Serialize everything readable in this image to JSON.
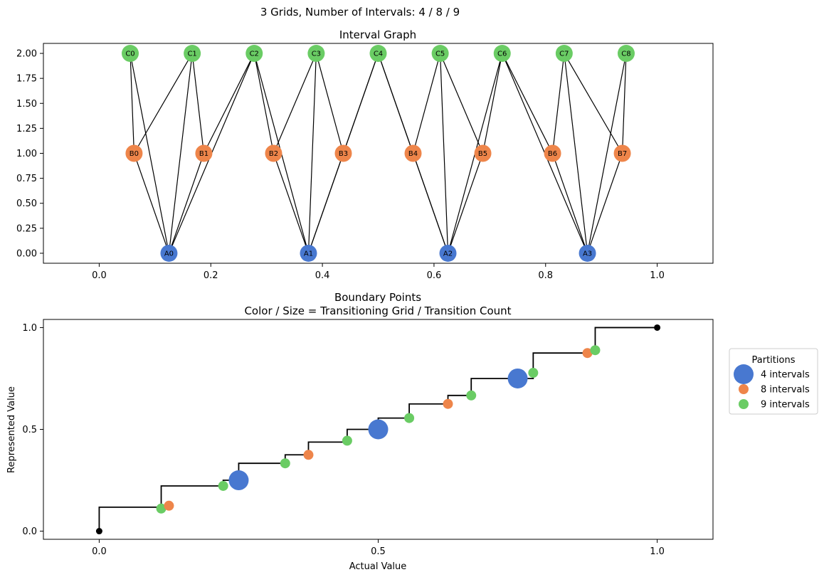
{
  "figure": {
    "suptitle": "3 Grids, Number of Intervals: 4 / 8 / 9"
  },
  "colors": {
    "grid4": "#4878d0",
    "grid8": "#ee854a",
    "grid9": "#6acc64",
    "line": "#000000"
  },
  "chart_data": [
    {
      "type": "scatter",
      "title": "Interval Graph",
      "xlabel": "",
      "ylabel": "",
      "xlim": [
        -0.1,
        1.1
      ],
      "ylim": [
        -0.1,
        2.1
      ],
      "xticks": [
        "0.0",
        "0.2",
        "0.4",
        "0.6",
        "0.8",
        "1.0"
      ],
      "yticks": [
        "0.00",
        "0.25",
        "0.50",
        "0.75",
        "1.00",
        "1.25",
        "1.50",
        "1.75",
        "2.00"
      ],
      "nodes": [
        {
          "label": "A0",
          "x": 0.125,
          "y": 0,
          "group": "grid4"
        },
        {
          "label": "A1",
          "x": 0.375,
          "y": 0,
          "group": "grid4"
        },
        {
          "label": "A2",
          "x": 0.625,
          "y": 0,
          "group": "grid4"
        },
        {
          "label": "A3",
          "x": 0.875,
          "y": 0,
          "group": "grid4"
        },
        {
          "label": "B0",
          "x": 0.0625,
          "y": 1,
          "group": "grid8"
        },
        {
          "label": "B1",
          "x": 0.1875,
          "y": 1,
          "group": "grid8"
        },
        {
          "label": "B2",
          "x": 0.3125,
          "y": 1,
          "group": "grid8"
        },
        {
          "label": "B3",
          "x": 0.4375,
          "y": 1,
          "group": "grid8"
        },
        {
          "label": "B4",
          "x": 0.5625,
          "y": 1,
          "group": "grid8"
        },
        {
          "label": "B5",
          "x": 0.6875,
          "y": 1,
          "group": "grid8"
        },
        {
          "label": "B6",
          "x": 0.8125,
          "y": 1,
          "group": "grid8"
        },
        {
          "label": "B7",
          "x": 0.9375,
          "y": 1,
          "group": "grid8"
        },
        {
          "label": "C0",
          "x": 0.0556,
          "y": 2,
          "group": "grid9"
        },
        {
          "label": "C1",
          "x": 0.1667,
          "y": 2,
          "group": "grid9"
        },
        {
          "label": "C2",
          "x": 0.2778,
          "y": 2,
          "group": "grid9"
        },
        {
          "label": "C3",
          "x": 0.3889,
          "y": 2,
          "group": "grid9"
        },
        {
          "label": "C4",
          "x": 0.5,
          "y": 2,
          "group": "grid9"
        },
        {
          "label": "C5",
          "x": 0.6111,
          "y": 2,
          "group": "grid9"
        },
        {
          "label": "C6",
          "x": 0.7222,
          "y": 2,
          "group": "grid9"
        },
        {
          "label": "C7",
          "x": 0.8333,
          "y": 2,
          "group": "grid9"
        },
        {
          "label": "C8",
          "x": 0.9444,
          "y": 2,
          "group": "grid9"
        }
      ],
      "edges": [
        [
          "A0",
          "B0"
        ],
        [
          "A0",
          "B1"
        ],
        [
          "A0",
          "C0"
        ],
        [
          "A0",
          "C1"
        ],
        [
          "A0",
          "C2"
        ],
        [
          "A1",
          "B2"
        ],
        [
          "A1",
          "B3"
        ],
        [
          "A1",
          "C2"
        ],
        [
          "A1",
          "C3"
        ],
        [
          "A1",
          "C4"
        ],
        [
          "A2",
          "B4"
        ],
        [
          "A2",
          "B5"
        ],
        [
          "A2",
          "C4"
        ],
        [
          "A2",
          "C5"
        ],
        [
          "A2",
          "C6"
        ],
        [
          "A3",
          "B6"
        ],
        [
          "A3",
          "B7"
        ],
        [
          "A3",
          "C6"
        ],
        [
          "A3",
          "C7"
        ],
        [
          "A3",
          "C8"
        ],
        [
          "B0",
          "C0"
        ],
        [
          "B0",
          "C1"
        ],
        [
          "B1",
          "C1"
        ],
        [
          "B1",
          "C2"
        ],
        [
          "B2",
          "C2"
        ],
        [
          "B2",
          "C3"
        ],
        [
          "B3",
          "C3"
        ],
        [
          "B3",
          "C4"
        ],
        [
          "B4",
          "C4"
        ],
        [
          "B4",
          "C5"
        ],
        [
          "B5",
          "C5"
        ],
        [
          "B5",
          "C6"
        ],
        [
          "B6",
          "C6"
        ],
        [
          "B6",
          "C7"
        ],
        [
          "B7",
          "C7"
        ],
        [
          "B7",
          "C8"
        ]
      ]
    },
    {
      "type": "line",
      "title": "Boundary Points",
      "subtitle": "Color / Size = Transitioning Grid / Transition Count",
      "xlabel": "Actual Value",
      "ylabel": "Represented Value",
      "xlim": [
        -0.1,
        1.1
      ],
      "ylim": [
        -0.04,
        1.04
      ],
      "xticks": [
        "0.0",
        "0.5",
        "1.0"
      ],
      "yticks": [
        "0.0",
        "0.5",
        "1.0"
      ],
      "step_x": [
        0,
        0.1111,
        0.125,
        0.2222,
        0.25,
        0.3333,
        0.375,
        0.4444,
        0.5,
        0.5556,
        0.625,
        0.6667,
        0.75,
        0.7778,
        0.875,
        0.8889,
        1.0
      ],
      "step_y": [
        0.1176,
        0.2222,
        0.2222,
        0.25,
        0.3333,
        0.375,
        0.4375,
        0.5,
        0.5556,
        0.625,
        0.6667,
        0.75,
        0.75,
        0.875,
        0.875,
        1.0,
        1.0
      ],
      "endpoints": [
        {
          "x": 0,
          "y": 0
        },
        {
          "x": 1.0,
          "y": 1.0
        }
      ],
      "points": [
        {
          "x": 0.1111,
          "y": 0.1111,
          "group": "grid9",
          "count": 1
        },
        {
          "x": 0.125,
          "y": 0.125,
          "group": "grid8",
          "count": 1
        },
        {
          "x": 0.2222,
          "y": 0.2222,
          "group": "grid9",
          "count": 1
        },
        {
          "x": 0.25,
          "y": 0.25,
          "group": "grid4",
          "count": 3
        },
        {
          "x": 0.3333,
          "y": 0.3333,
          "group": "grid9",
          "count": 1
        },
        {
          "x": 0.375,
          "y": 0.375,
          "group": "grid8",
          "count": 1
        },
        {
          "x": 0.4444,
          "y": 0.4444,
          "group": "grid9",
          "count": 1
        },
        {
          "x": 0.5,
          "y": 0.5,
          "group": "grid4",
          "count": 3
        },
        {
          "x": 0.5556,
          "y": 0.5556,
          "group": "grid9",
          "count": 1
        },
        {
          "x": 0.625,
          "y": 0.625,
          "group": "grid8",
          "count": 1
        },
        {
          "x": 0.6667,
          "y": 0.6667,
          "group": "grid9",
          "count": 1
        },
        {
          "x": 0.75,
          "y": 0.75,
          "group": "grid4",
          "count": 3
        },
        {
          "x": 0.7778,
          "y": 0.7778,
          "group": "grid9",
          "count": 1
        },
        {
          "x": 0.875,
          "y": 0.875,
          "group": "grid8",
          "count": 1
        },
        {
          "x": 0.8889,
          "y": 0.8889,
          "group": "grid9",
          "count": 1
        }
      ],
      "legend": {
        "title": "Partitions",
        "placement": "outside-right",
        "entries": [
          {
            "label": "4 intervals",
            "group": "grid4"
          },
          {
            "label": "8 intervals",
            "group": "grid8"
          },
          {
            "label": "9 intervals",
            "group": "grid9"
          }
        ]
      }
    }
  ]
}
